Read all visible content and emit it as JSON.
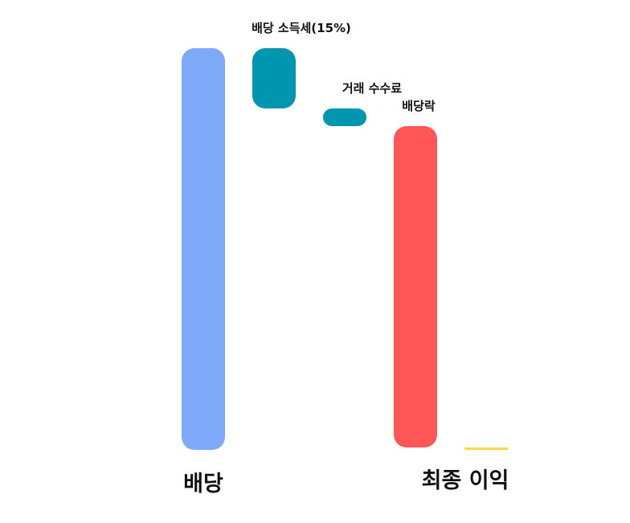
{
  "chart_data": {
    "type": "waterfall",
    "title": "",
    "xlabel": "",
    "ylabel": "",
    "categories": [
      "배당",
      "배당 소득세(15%)",
      "거래 수수료",
      "배당락",
      "최종 이익"
    ],
    "steps": [
      {
        "label": "배당",
        "kind": "total",
        "value": 100,
        "color": "#7EA9F8"
      },
      {
        "label": "배당 소득세(15%)",
        "kind": "decrease",
        "value": -15,
        "color": "#0096B0"
      },
      {
        "label": "거래 수수료",
        "kind": "decrease",
        "value": -4.4,
        "color": "#0096B0"
      },
      {
        "label": "배당락",
        "kind": "decrease",
        "value": -80,
        "color": "#FF5757"
      },
      {
        "label": "최종 이익",
        "kind": "total",
        "value": 0.6,
        "color": "#FFD84D"
      }
    ],
    "axes_visible": false,
    "grid": false,
    "legend": "none"
  }
}
